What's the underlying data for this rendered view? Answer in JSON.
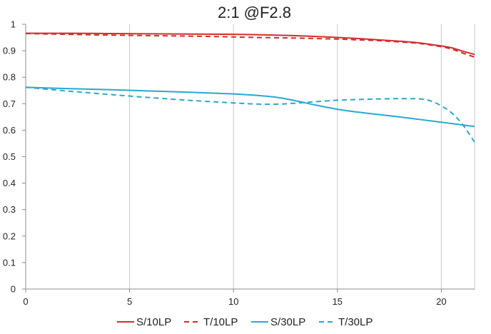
{
  "chart_data": {
    "type": "line",
    "title": "2:1  @F2.8",
    "xlabel": "",
    "ylabel": "",
    "xlim": [
      0,
      21.6
    ],
    "ylim": [
      0,
      1
    ],
    "x_ticks": [
      0,
      5,
      10,
      15,
      20
    ],
    "y_ticks": [
      0,
      0.1,
      0.2,
      0.3,
      0.4,
      0.5,
      0.6,
      0.7,
      0.8,
      0.9,
      1
    ],
    "y_tick_labels": [
      "0",
      "0.1",
      "0.2",
      "0.3",
      "0.4",
      "0.5",
      "0.6",
      "0.7",
      "0.8",
      "0.9",
      "1"
    ],
    "grid": "vertical",
    "legend_position": "bottom",
    "series": [
      {
        "name": "S/10LP",
        "color": "#d62c2c",
        "dash": "solid",
        "x": [
          0,
          2,
          4,
          6,
          8,
          10,
          12,
          13,
          14,
          15,
          16,
          17,
          18,
          19,
          20,
          20.5,
          21,
          21.6
        ],
        "y": [
          0.966,
          0.966,
          0.965,
          0.964,
          0.963,
          0.962,
          0.959,
          0.957,
          0.954,
          0.95,
          0.946,
          0.941,
          0.936,
          0.929,
          0.918,
          0.911,
          0.899,
          0.886
        ]
      },
      {
        "name": "T/10LP",
        "color": "#d62c2c",
        "dash": "dashed",
        "x": [
          0,
          2,
          4,
          6,
          8,
          10,
          12,
          13,
          14,
          15,
          16,
          17,
          18,
          19,
          20,
          20.5,
          21,
          21.6
        ],
        "y": [
          0.965,
          0.962,
          0.959,
          0.957,
          0.955,
          0.952,
          0.949,
          0.948,
          0.946,
          0.944,
          0.941,
          0.938,
          0.933,
          0.927,
          0.915,
          0.906,
          0.892,
          0.876
        ]
      },
      {
        "name": "S/30LP",
        "color": "#29a8cf",
        "dash": "solid",
        "x": [
          0,
          2,
          4,
          6,
          8,
          10,
          11,
          12,
          13,
          14,
          15,
          16,
          17,
          18,
          19,
          20,
          21,
          21.6
        ],
        "y": [
          0.762,
          0.757,
          0.753,
          0.748,
          0.743,
          0.737,
          0.732,
          0.725,
          0.711,
          0.694,
          0.679,
          0.668,
          0.659,
          0.65,
          0.64,
          0.63,
          0.62,
          0.614
        ]
      },
      {
        "name": "T/30LP",
        "color": "#29a8cf",
        "dash": "dashed",
        "x": [
          0,
          2,
          4,
          6,
          8,
          10,
          11,
          12,
          13,
          14,
          15,
          16,
          17,
          18,
          19,
          19.5,
          20,
          20.5,
          21,
          21.6
        ],
        "y": [
          0.762,
          0.748,
          0.735,
          0.723,
          0.712,
          0.703,
          0.699,
          0.698,
          0.702,
          0.708,
          0.713,
          0.716,
          0.718,
          0.719,
          0.718,
          0.71,
          0.692,
          0.665,
          0.624,
          0.555
        ]
      }
    ]
  }
}
